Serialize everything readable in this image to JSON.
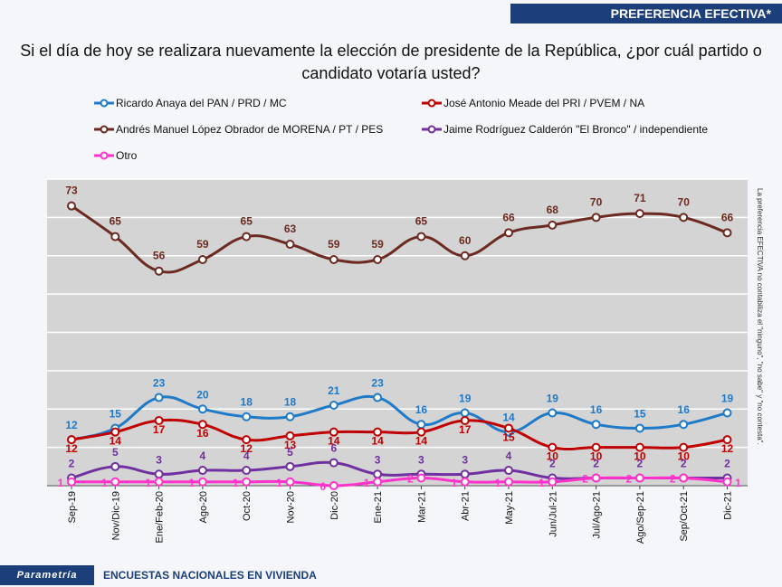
{
  "header": {
    "title": "PREFERENCIA EFECTIVA*"
  },
  "question": "Si el día de hoy se realizara nuevamente la elección de presidente de la República, ¿por cuál partido o candidato votaría usted?",
  "side_note": "La preferencia EFECTIVA no contabiliza el \"ninguno\", \"no sabe\" y \"no contesta\".",
  "footer": {
    "brand": "Parametría",
    "text": "ENCUESTAS NACIONALES EN VIVIENDA"
  },
  "chart_data": {
    "type": "line",
    "title": "",
    "xlabel": "",
    "ylabel": "",
    "ylim": [
      0,
      80
    ],
    "grid": true,
    "legend_position": "top",
    "categories": [
      "Sep-19",
      "Nov/Dic-19",
      "Ene/Feb-20",
      "Ago-20",
      "Oct-20",
      "Nov-20",
      "Dic-20",
      "Ene-21",
      "Mar-21",
      "Abr-21",
      "May-21",
      "Jun/Jul-21",
      "Jul/Ago-21",
      "Ago/Sep-21",
      "Sep/Oct-21",
      "Dic-21"
    ],
    "series": [
      {
        "name": "Ricardo Anaya del PAN / PRD / MC",
        "color": "#1f7ac8",
        "values": [
          12,
          15,
          23,
          20,
          18,
          18,
          21,
          23,
          16,
          19,
          14,
          19,
          16,
          15,
          16,
          19
        ]
      },
      {
        "name": "José Antonio Meade del PRI / PVEM / NA",
        "color": "#c00000",
        "values": [
          12,
          14,
          17,
          16,
          12,
          13,
          14,
          14,
          14,
          17,
          15,
          10,
          10,
          10,
          10,
          12
        ]
      },
      {
        "name": "Andrés Manuel López Obrador de MORENA / PT / PES",
        "color": "#6b2a22",
        "values": [
          73,
          65,
          56,
          59,
          65,
          63,
          59,
          59,
          65,
          60,
          66,
          68,
          70,
          71,
          70,
          66
        ]
      },
      {
        "name": "Jaime Rodríguez Calderón  \"El Bronco\" / independiente",
        "color": "#7030a0",
        "values": [
          2,
          5,
          3,
          4,
          4,
          5,
          6,
          3,
          3,
          3,
          4,
          2,
          2,
          2,
          2,
          2
        ]
      },
      {
        "name": "Otro",
        "color": "#ff33cc",
        "values": [
          1,
          1,
          1,
          1,
          1,
          1,
          0,
          1,
          2,
          1,
          1,
          1,
          2,
          2,
          2,
          1
        ]
      }
    ]
  }
}
